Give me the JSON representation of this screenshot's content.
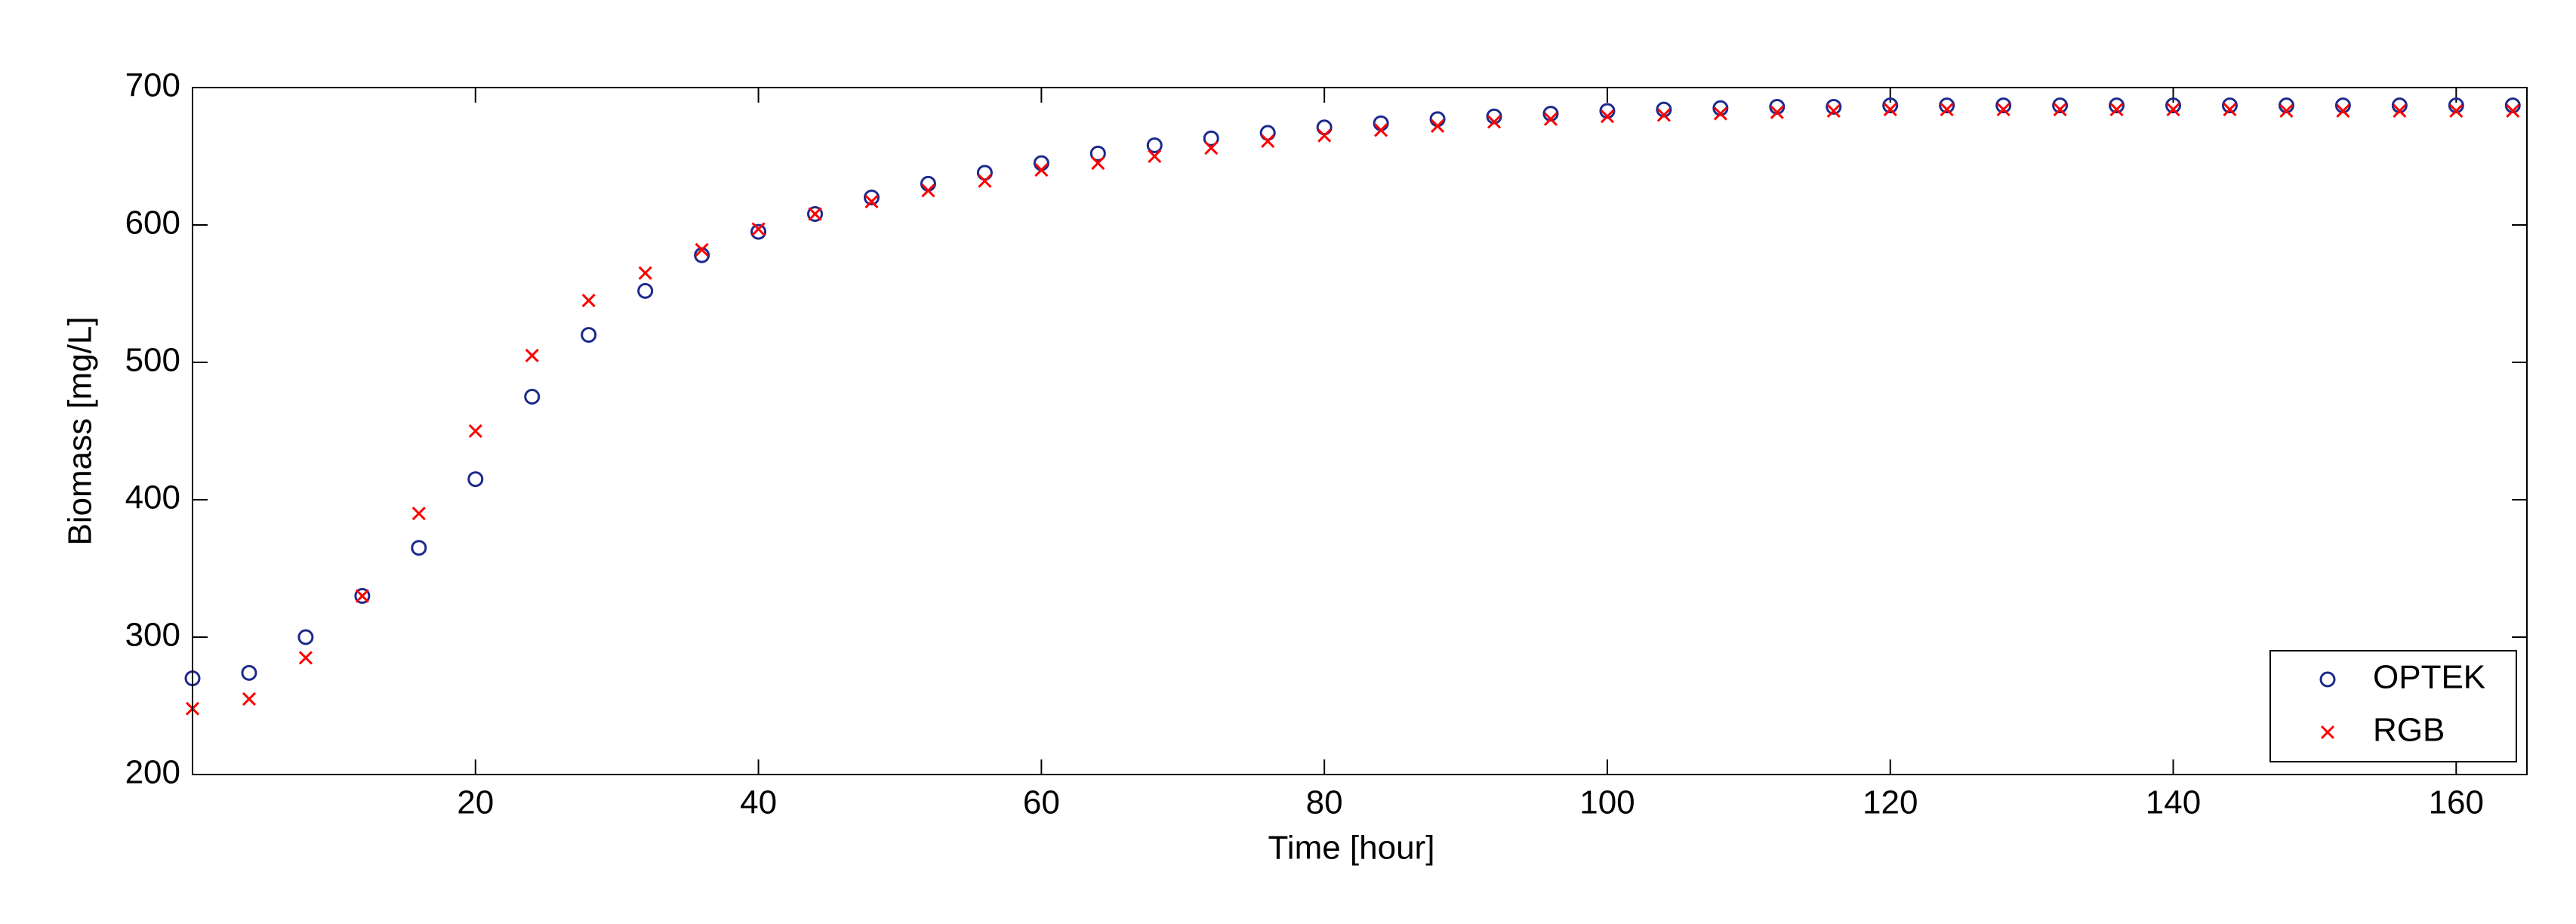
{
  "chart_data": {
    "type": "scatter",
    "x_label": "Time [hour]",
    "y_label": "Biomass [mg/L]",
    "xlim": [
      0,
      165
    ],
    "ylim": [
      200,
      700
    ],
    "xticks": [
      20,
      40,
      60,
      80,
      100,
      120,
      140,
      160
    ],
    "yticks": [
      200,
      300,
      400,
      500,
      600,
      700
    ],
    "legend": "lower right",
    "grid": false,
    "x": [
      0,
      4,
      8,
      12,
      16,
      20,
      24,
      28,
      32,
      36,
      40,
      44,
      48,
      52,
      56,
      60,
      64,
      68,
      72,
      76,
      80,
      84,
      88,
      92,
      96,
      100,
      104,
      108,
      112,
      116,
      120,
      124,
      128,
      132,
      136,
      140,
      144,
      148,
      152,
      156,
      160,
      164
    ],
    "series": [
      {
        "name": "OPTEK",
        "color": "#1c2a8c",
        "marker": "circle",
        "values": [
          270,
          274,
          300,
          330,
          365,
          415,
          475,
          520,
          552,
          578,
          595,
          608,
          620,
          630,
          638,
          645,
          652,
          658,
          663,
          667,
          671,
          674,
          677,
          679,
          681,
          683,
          684,
          685,
          686,
          686,
          687,
          687,
          687,
          687,
          687,
          687,
          687,
          687,
          687,
          687,
          687,
          687
        ]
      },
      {
        "name": "RGB",
        "color": "#ff0000",
        "marker": "x",
        "values": [
          248,
          255,
          285,
          330,
          390,
          450,
          505,
          545,
          565,
          582,
          597,
          608,
          617,
          625,
          632,
          640,
          645,
          650,
          656,
          661,
          665,
          669,
          672,
          675,
          677,
          679,
          680,
          681,
          682,
          683,
          684,
          684,
          684,
          684,
          684,
          684,
          684,
          683,
          683,
          683,
          683,
          683
        ]
      }
    ]
  }
}
